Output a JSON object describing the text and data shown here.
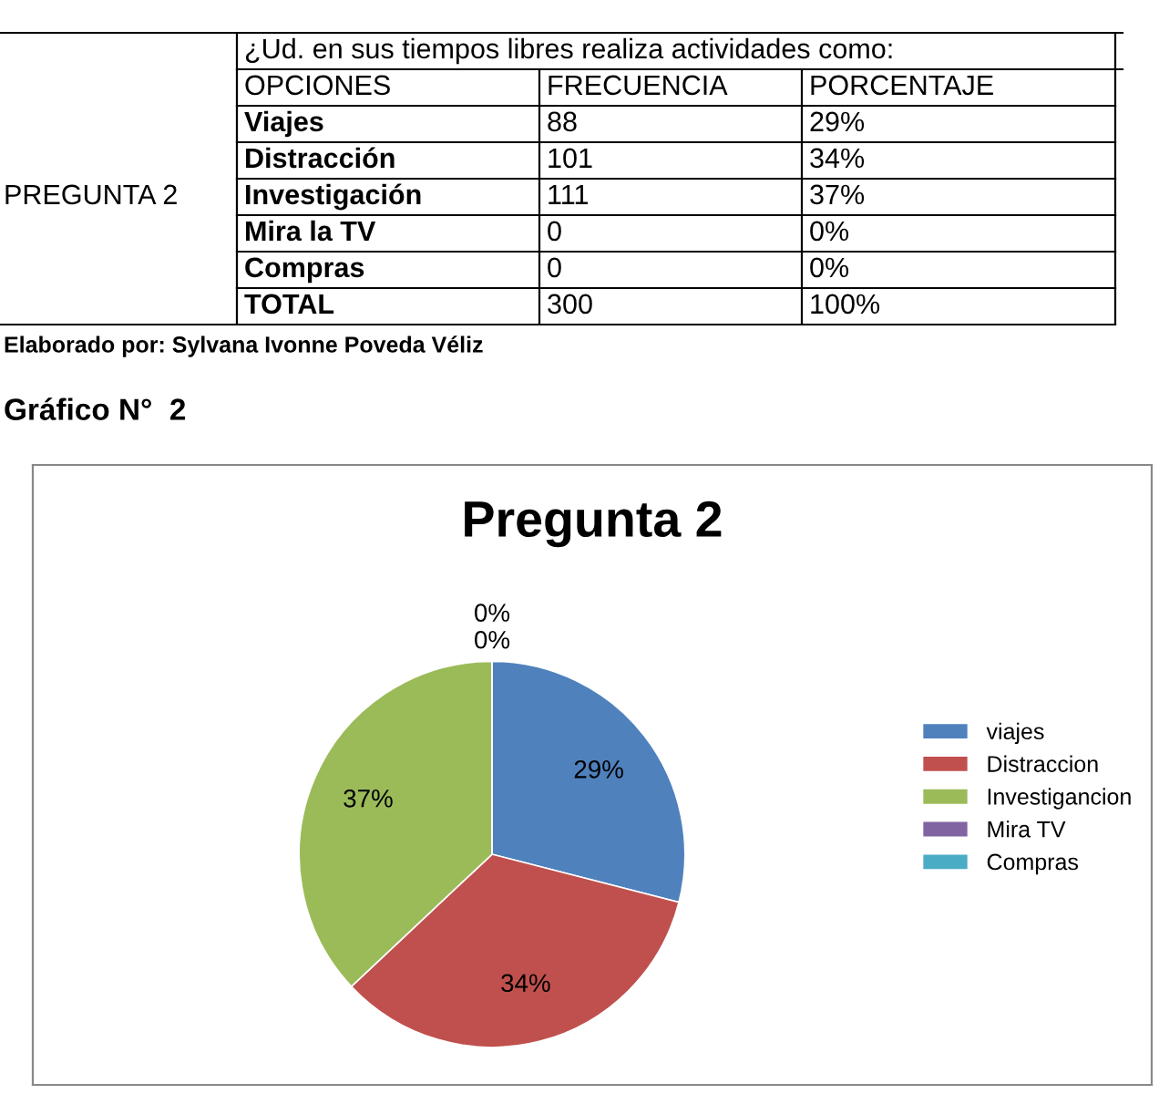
{
  "chart_data": [
    {
      "type": "other",
      "title": "¿Ud. en sus tiempos libres realiza actividades como:",
      "annotations": [
        "PREGUNTA 2",
        "OPCIONES",
        "FRECUENCIA",
        "PORCENTAJE",
        "Viajes",
        "88",
        "29%",
        "Distracción",
        "101",
        "34%",
        "Investigación",
        "111",
        "37%",
        "Mira la TV",
        "0",
        "0%",
        "Compras",
        "0",
        "0%",
        "TOTAL",
        "300",
        "100%",
        "Elaborado por: Sylvana Ivonne Poveda Véliz",
        "Gráfico N°  2"
      ]
    },
    {
      "type": "pie",
      "title": "Pregunta 2",
      "categories": [
        "viajes",
        "Distraccion",
        "Investigancion",
        "Mira TV",
        "Compras"
      ],
      "values": [
        29,
        34,
        37,
        0,
        0
      ],
      "colors": [
        "#4f81bd",
        "#c0504d",
        "#9bbb59",
        "#8064a2",
        "#4bacc6"
      ],
      "value_labels": [
        "29%",
        "34%",
        "37%",
        "0%",
        "0%"
      ],
      "legend": "right"
    }
  ]
}
